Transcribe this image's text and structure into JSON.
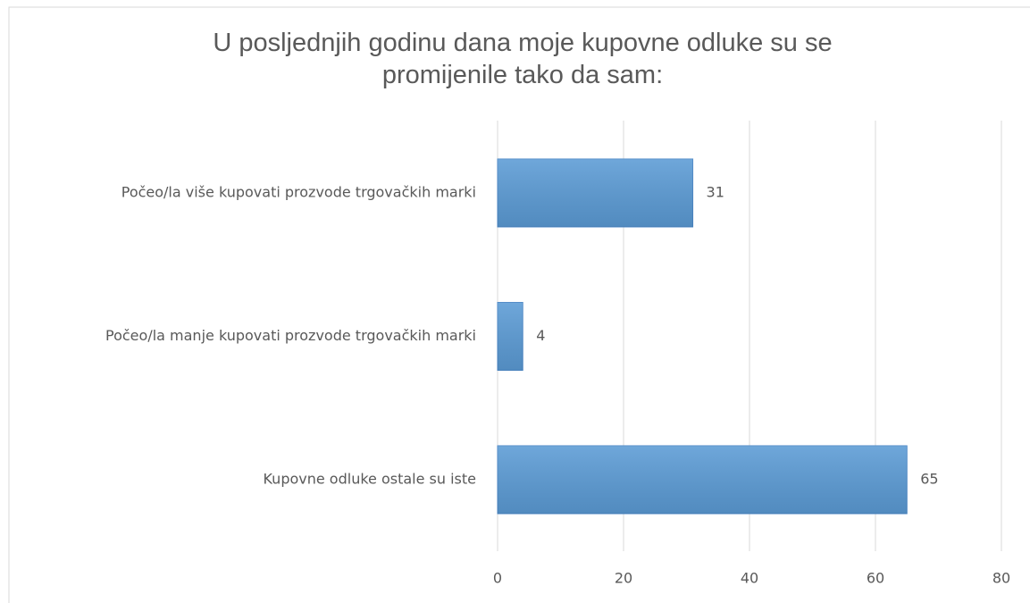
{
  "chart_data": {
    "type": "barh",
    "title": "U posljednjih godinu dana moje kupovne odluke su se promijenile tako da sam:",
    "categories": [
      "Počeo/la više kupovati prozvode trgovačkih marki",
      "Počeo/la manje kupovati prozvode trgovačkih marki",
      "Kupovne odluke ostale su iste"
    ],
    "values": [
      31,
      4,
      65
    ],
    "color": "#5b9bd5",
    "xlim": [
      0,
      80
    ],
    "xticks": [
      0,
      20,
      40,
      60,
      80
    ],
    "grid": true
  }
}
